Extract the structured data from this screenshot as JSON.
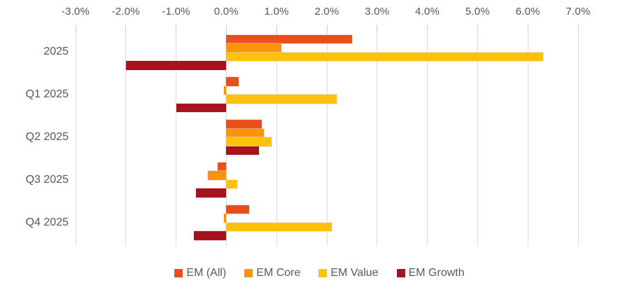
{
  "chart_data": {
    "type": "bar",
    "orientation": "horizontal",
    "title": "",
    "xlabel": "",
    "ylabel": "",
    "categories": [
      "2025",
      "Q1 2025",
      "Q2 2025",
      "Q3 2025",
      "Q4 2025"
    ],
    "series": [
      {
        "name": "EM (All)",
        "color": "#E94F1A",
        "values": [
          2.5,
          0.25,
          0.7,
          -0.17,
          0.46
        ]
      },
      {
        "name": "EM Core",
        "color": "#FA9407",
        "values": [
          1.1,
          -0.05,
          0.75,
          -0.37,
          -0.05
        ]
      },
      {
        "name": "EM Value",
        "color": "#FFC20A",
        "values": [
          6.3,
          2.2,
          0.9,
          0.22,
          2.1
        ]
      },
      {
        "name": "EM Growth",
        "color": "#A6121E",
        "values": [
          -2.0,
          -1.0,
          0.65,
          -0.6,
          -0.65
        ]
      }
    ],
    "x_axis": {
      "position": "top",
      "unit": "%",
      "min": -3,
      "max": 7,
      "tick_values": [
        -3,
        -2,
        -1,
        0,
        1,
        2,
        3,
        4,
        5,
        6,
        7
      ],
      "tick_labels": [
        "-3.0%",
        "-2.0%",
        "-1.0%",
        "0.0%",
        "1.0%",
        "2.0%",
        "3.0%",
        "4.0%",
        "5.0%",
        "6.0%",
        "7.0%"
      ]
    },
    "grid": true,
    "legend": {
      "position": "bottom",
      "items": [
        "EM (All)",
        "EM Core",
        "EM Value",
        "EM Growth"
      ]
    },
    "colors": {
      "axis_text": "#54555a",
      "legend_text": "#595959",
      "gridline": "#dadada",
      "tick": "#c9c9c9",
      "background": "#ffffff"
    }
  }
}
